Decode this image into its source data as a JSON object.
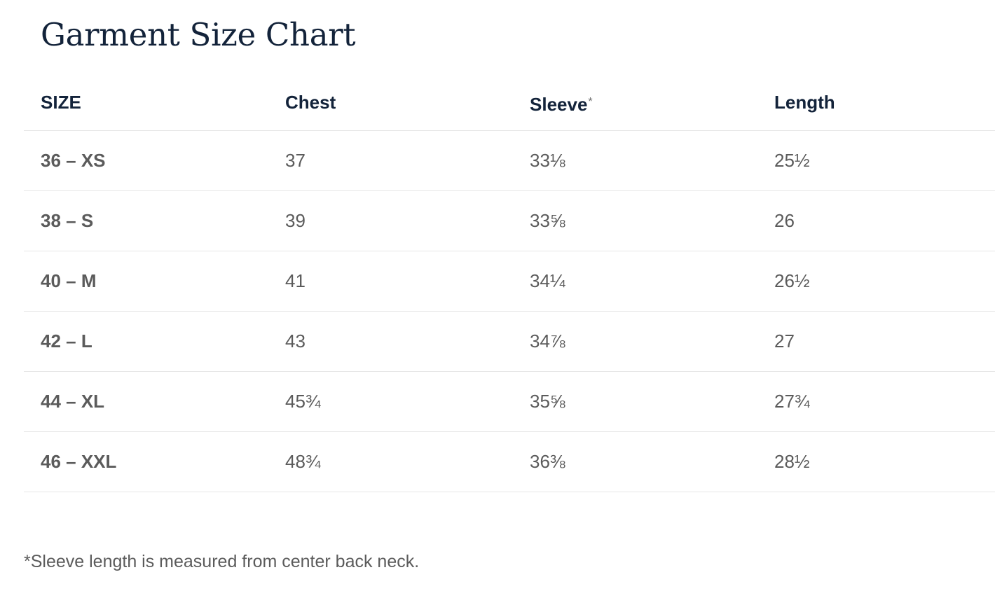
{
  "title": "Garment Size Chart",
  "table": {
    "headers": {
      "size": "SIZE",
      "chest": "Chest",
      "sleeve": "Sleeve",
      "sleeve_marker": "*",
      "length": "Length"
    },
    "rows": [
      {
        "size": "36 – XS",
        "chest": "37",
        "sleeve": "33⅛",
        "length": "25½"
      },
      {
        "size": "38 – S",
        "chest": "39",
        "sleeve": "33⅝",
        "length": "26"
      },
      {
        "size": "40 – M",
        "chest": "41",
        "sleeve": "34¼",
        "length": "26½"
      },
      {
        "size": "42 – L",
        "chest": "43",
        "sleeve": "34⅞",
        "length": "27"
      },
      {
        "size": "44 – XL",
        "chest": "45¾",
        "sleeve": "35⅝",
        "length": "27¾"
      },
      {
        "size": "46 – XXL",
        "chest": "48¾",
        "sleeve": "36⅜",
        "length": "28½"
      }
    ]
  },
  "footnote": "*Sleeve length is measured from center back neck."
}
